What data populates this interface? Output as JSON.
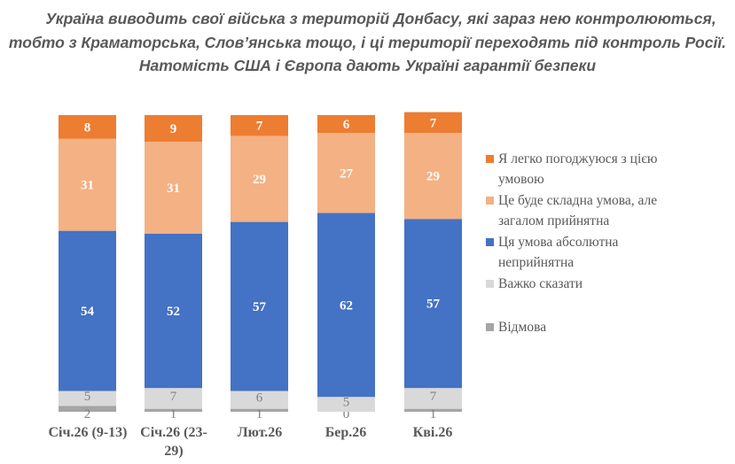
{
  "title_lines": [
    "Україна виводить свої війська з територій Донбасу, які зараз нею контролюються,",
    "тобто з Краматорська, Слов’янська тощо, і ці території переходять під контроль Росії.",
    "Натомість США і Європа дають Україні гарантії безпеки"
  ],
  "chart_data": {
    "type": "bar",
    "stacked": true,
    "orientation": "vertical",
    "percent": true,
    "categories": [
      "Січ.26 (9-13)",
      "Січ.26 (23-29)",
      "Лют.26",
      "Бер.26",
      "Кві.26"
    ],
    "series": [
      {
        "name": "Відмова",
        "color": "#A5A5A5",
        "label_color": "#7F7F7F",
        "values": [
          2,
          1,
          1,
          0,
          1
        ]
      },
      {
        "name": "Важко сказати",
        "color": "#D9D9D9",
        "label_color": "#7F7F7F",
        "values": [
          5,
          7,
          6,
          5,
          7
        ]
      },
      {
        "name": "Ця умова абсолютна неприйнятна",
        "color": "#4472C4",
        "label_color": "#FFFFFF",
        "values": [
          54,
          52,
          57,
          62,
          57
        ]
      },
      {
        "name": "Це буде складна умова, але загалом прийнятна",
        "color": "#F4B183",
        "label_color": "#FFFFFF",
        "values": [
          31,
          31,
          29,
          27,
          29
        ]
      },
      {
        "name": "Я легко погоджуюся з цією умовою",
        "color": "#ED7D31",
        "label_color": "#FFFFFF",
        "values": [
          8,
          9,
          7,
          6,
          7
        ]
      }
    ],
    "ylim": [
      0,
      100
    ],
    "grid": false,
    "legend_position": "right"
  },
  "legend": [
    {
      "line1": "Я легко погоджуюся з цією",
      "line2": "умовою",
      "color": "#ED7D31"
    },
    {
      "line1": "Це буде складна умова, але",
      "line2": "загалом прийнятна",
      "color": "#F4B183"
    },
    {
      "line1": "Ця умова абсолютна",
      "line2": "неприйнятна",
      "color": "#4472C4"
    },
    {
      "line1": "Важко сказати",
      "line2": "",
      "color": "#D9D9D9"
    },
    {
      "line1": "Відмова",
      "line2": "",
      "color": "#A5A5A5"
    }
  ],
  "category_labels": [
    {
      "line1": "Січ.26 (9-13)",
      "line2": ""
    },
    {
      "line1": "Січ.26 (23-",
      "line2": "29)"
    },
    {
      "line1": "Лют.26",
      "line2": ""
    },
    {
      "line1": "Бер.26",
      "line2": ""
    },
    {
      "line1": "Кві.26",
      "line2": ""
    }
  ]
}
